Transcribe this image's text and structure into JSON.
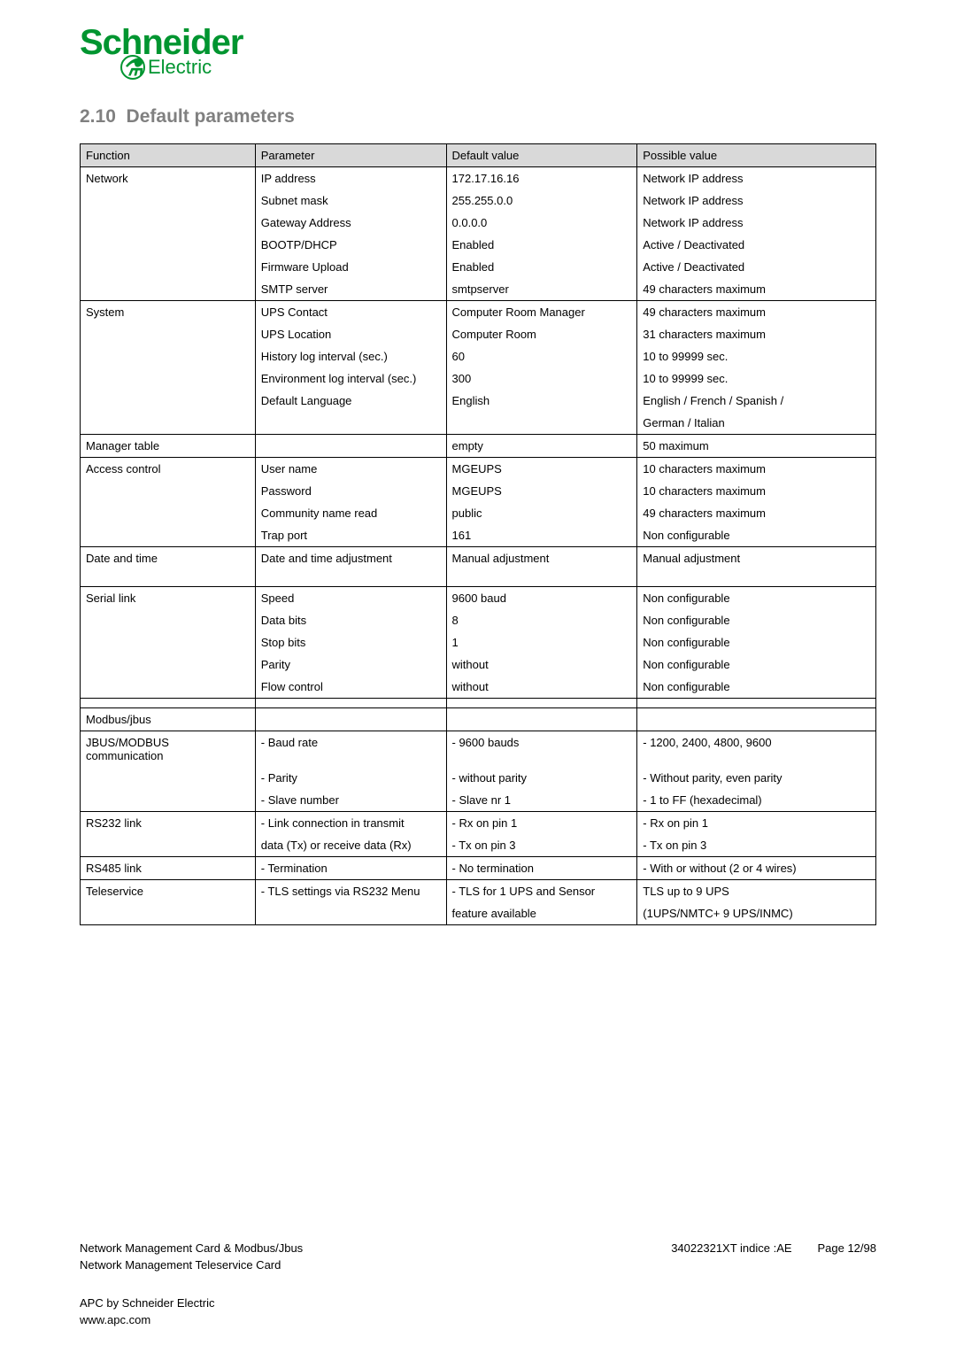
{
  "logo": {
    "main": "Schneider",
    "sub": "Electric"
  },
  "section": {
    "number": "2.10",
    "title": "Default parameters"
  },
  "tbl": {
    "headers": [
      "Function",
      "Parameter",
      "Default value",
      "Possible value"
    ],
    "col_widths_pct": [
      22,
      24,
      24,
      30
    ],
    "header_bg": "#d9d9d9",
    "rows": [
      {
        "f": "Network",
        "p": "IP address",
        "d": "172.17.16.16",
        "v": "Network IP address",
        "ft": true
      },
      {
        "f": "",
        "p": "Subnet mask",
        "d": "255.255.0.0",
        "v": "Network IP address"
      },
      {
        "f": "",
        "p": "Gateway Address",
        "d": "0.0.0.0",
        "v": "Network IP address"
      },
      {
        "f": "",
        "p": "BOOTP/DHCP",
        "d": "Enabled",
        "v": "Active / Deactivated"
      },
      {
        "f": "",
        "p": "Firmware Upload",
        "d": "Enabled",
        "v": "Active / Deactivated"
      },
      {
        "f": "",
        "p": "SMTP server",
        "d": "smtpserver",
        "v": "49 characters maximum",
        "fb": true
      },
      {
        "f": "System",
        "p": "UPS Contact",
        "d": "Computer Room Manager",
        "v": "49 characters maximum",
        "ft": true
      },
      {
        "f": "",
        "p": "UPS Location",
        "d": "Computer Room",
        "v": "31 characters maximum"
      },
      {
        "f": "",
        "p": "History log interval (sec.)",
        "d": "60",
        "v": "10 to 99999 sec."
      },
      {
        "f": "",
        "p": "Environment log interval (sec.)",
        "d": "300",
        "v": "10 to 99999 sec."
      },
      {
        "f": "",
        "p": "Default Language",
        "d": "English",
        "v": "English / French / Spanish /"
      },
      {
        "f": "",
        "p": "",
        "d": "",
        "v": "German / Italian",
        "fb": true
      },
      {
        "f": "Manager table",
        "p": "",
        "d": "empty",
        "v": "50 maximum",
        "single": true
      },
      {
        "f": "Access control",
        "p": "User name",
        "d": "MGEUPS",
        "v": "10 characters maximum",
        "ft": true
      },
      {
        "f": "",
        "p": "Password",
        "d": "MGEUPS",
        "v": "10 characters maximum"
      },
      {
        "f": "",
        "p": "Community name read",
        "d": "public",
        "v": "49 characters maximum"
      },
      {
        "f": "",
        "p": "Trap port",
        "d": "161",
        "v": "Non configurable",
        "fb": true
      },
      {
        "f": "Date and time",
        "p": "Date and time adjustment",
        "d": "Manual adjustment",
        "v": "Manual adjustment",
        "single": true,
        "tall": true
      },
      {
        "f": "Serial link",
        "p": "Speed",
        "d": "9600 baud",
        "v": "Non configurable",
        "ft": true
      },
      {
        "f": "",
        "p": "Data bits",
        "d": "8",
        "v": "Non configurable"
      },
      {
        "f": "",
        "p": "Stop bits",
        "d": "1",
        "v": "Non configurable"
      },
      {
        "f": "",
        "p": "Parity",
        "d": "without",
        "v": "Non configurable"
      },
      {
        "f": "",
        "p": "Flow control",
        "d": "without",
        "v": "Non configurable",
        "fb": true
      },
      {
        "f": "",
        "p": "",
        "d": "",
        "v": "",
        "single": true
      },
      {
        "f": "Modbus/jbus",
        "p": "",
        "d": "",
        "v": "",
        "single": true
      },
      {
        "f": "JBUS/MODBUS communication",
        "p": "- Baud rate",
        "d": "- 9600 bauds",
        "v": "- 1200, 2400, 4800, 9600",
        "ft": true
      },
      {
        "f": "",
        "p": "- Parity",
        "d": "- without parity",
        "v": "- Without parity, even parity"
      },
      {
        "f": "",
        "p": "- Slave number",
        "d": "- Slave nr 1",
        "v": "- 1 to FF (hexadecimal)",
        "fb": true
      },
      {
        "f": "RS232 link",
        "p": "- Link connection in transmit",
        "d": "- Rx on pin 1",
        "v": "- Rx on pin 1",
        "ft": true
      },
      {
        "f": "",
        "p": "data (Tx) or receive data (Rx)",
        "d": "- Tx on pin 3",
        "v": "- Tx on pin 3",
        "fb": true
      },
      {
        "f": "RS485 link",
        "p": "- Termination",
        "d": "- No termination",
        "v": "- With or without (2 or 4 wires)",
        "single": true
      },
      {
        "f": "Teleservice",
        "p": "- TLS settings via RS232 Menu",
        "d": "- TLS for 1 UPS and Sensor",
        "v": "TLS up  to 9 UPS",
        "ft": true
      },
      {
        "f": "",
        "p": "",
        "d": "feature available",
        "v": "(1UPS/NMTC+ 9 UPS/INMC)",
        "fb": true
      }
    ]
  },
  "footer": {
    "l1_left": "Network Management Card & Modbus/Jbus",
    "l1_mid": "34022321XT indice :AE",
    "l1_right": "Page 12/98",
    "l2": "Network Management Teleservice Card",
    "l3": "APC by Schneider Electric",
    "l4": "www.apc.com"
  }
}
